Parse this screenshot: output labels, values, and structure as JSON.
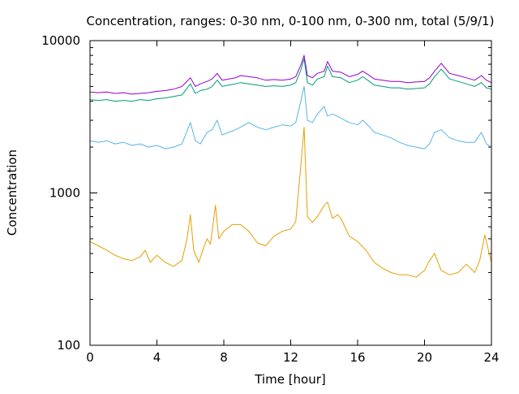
{
  "chart_data": {
    "type": "line",
    "title": "Concentration, ranges: 0-30 nm, 0-100 nm, 0-300 nm, total (5/9/1)",
    "xlabel": "Time [hour]",
    "ylabel": "Concentration",
    "xlim": [
      0,
      24
    ],
    "ylim": [
      100,
      10000
    ],
    "yscale": "log",
    "xticks": [
      0,
      4,
      8,
      12,
      16,
      20,
      24
    ],
    "xtick_labels": [
      "0",
      "4",
      "8",
      "12",
      "16",
      "20",
      "24"
    ],
    "yticks": [
      100,
      1000,
      10000
    ],
    "ytick_labels": [
      "100",
      "1000",
      "10000"
    ],
    "grid": false,
    "legend": "none",
    "series": [
      {
        "color": "#e69f00",
        "x": [
          0,
          0.5,
          1,
          1.5,
          2,
          2.5,
          3,
          3.3,
          3.6,
          4,
          4.5,
          5,
          5.5,
          5.8,
          6,
          6.2,
          6.5,
          6.8,
          7,
          7.2,
          7.5,
          7.7,
          8,
          8.5,
          9,
          9.5,
          10,
          10.5,
          11,
          11.5,
          12,
          12.3,
          12.6,
          12.8,
          13,
          13.3,
          13.6,
          14,
          14.2,
          14.5,
          14.8,
          15,
          15.5,
          16,
          16.5,
          17,
          17.5,
          18,
          18.5,
          19,
          19.5,
          20,
          20.3,
          20.6,
          21,
          21.5,
          22,
          22.5,
          23,
          23.3,
          23.6,
          24
        ],
        "values": [
          480,
          450,
          420,
          390,
          370,
          360,
          380,
          420,
          350,
          390,
          350,
          330,
          360,
          500,
          720,
          420,
          350,
          440,
          500,
          460,
          830,
          500,
          560,
          620,
          620,
          560,
          470,
          450,
          520,
          560,
          580,
          650,
          1500,
          2700,
          700,
          640,
          700,
          830,
          870,
          680,
          720,
          680,
          520,
          480,
          420,
          350,
          320,
          300,
          290,
          290,
          280,
          310,
          360,
          400,
          310,
          290,
          300,
          340,
          300,
          360,
          530,
          350
        ]
      },
      {
        "color": "#56b4e9",
        "x": [
          0,
          0.5,
          1,
          1.5,
          2,
          2.5,
          3,
          3.5,
          4,
          4.5,
          5,
          5.5,
          6,
          6.3,
          6.6,
          7,
          7.3,
          7.6,
          7.9,
          8.3,
          8.7,
          9,
          9.5,
          10,
          10.5,
          11,
          11.5,
          12,
          12.3,
          12.6,
          12.8,
          13,
          13.3,
          13.6,
          14,
          14.2,
          14.5,
          15,
          15.5,
          16,
          16.3,
          16.6,
          17,
          17.5,
          18,
          18.5,
          19,
          19.5,
          20,
          20.3,
          20.6,
          21,
          21.5,
          22,
          22.5,
          23,
          23.4,
          23.7,
          24
        ],
        "values": [
          2200,
          2150,
          2200,
          2100,
          2150,
          2050,
          2100,
          2000,
          2050,
          1950,
          2000,
          2100,
          2900,
          2200,
          2100,
          2500,
          2600,
          3000,
          2400,
          2500,
          2600,
          2700,
          2900,
          2700,
          2600,
          2700,
          2800,
          2750,
          2900,
          4000,
          5000,
          3000,
          2900,
          3300,
          3700,
          3200,
          3300,
          3100,
          2900,
          2800,
          3000,
          2800,
          2500,
          2400,
          2300,
          2150,
          2050,
          2000,
          1950,
          2100,
          2500,
          2600,
          2300,
          2200,
          2150,
          2150,
          2500,
          2100,
          2000
        ]
      },
      {
        "color": "#009e73",
        "x": [
          0,
          0.5,
          1,
          1.5,
          2,
          2.5,
          3,
          3.5,
          4,
          4.5,
          5,
          5.5,
          6,
          6.3,
          6.6,
          7,
          7.3,
          7.6,
          7.9,
          8.3,
          8.7,
          9,
          9.5,
          10,
          10.5,
          11,
          11.5,
          12,
          12.3,
          12.6,
          12.8,
          13,
          13.3,
          13.6,
          14,
          14.2,
          14.5,
          15,
          15.5,
          16,
          16.3,
          16.6,
          17,
          17.5,
          18,
          18.5,
          19,
          19.5,
          20,
          20.3,
          20.6,
          21,
          21.5,
          22,
          22.5,
          23,
          23.4,
          23.7,
          24
        ],
        "values": [
          4100,
          4050,
          4100,
          4000,
          4050,
          4000,
          4100,
          4050,
          4150,
          4200,
          4300,
          4400,
          5200,
          4500,
          4700,
          4800,
          5000,
          5500,
          5000,
          5100,
          5200,
          5300,
          5200,
          5100,
          5000,
          5050,
          5000,
          5100,
          5300,
          6400,
          7600,
          5300,
          5100,
          5600,
          5800,
          6800,
          5800,
          5700,
          5300,
          5500,
          5800,
          5500,
          5100,
          5000,
          4900,
          4900,
          4800,
          4850,
          4900,
          5200,
          5800,
          6500,
          5600,
          5400,
          5200,
          5000,
          5300,
          4900,
          4800
        ]
      },
      {
        "color": "#9400d3",
        "x": [
          0,
          0.5,
          1,
          1.5,
          2,
          2.5,
          3,
          3.5,
          4,
          4.5,
          5,
          5.5,
          6,
          6.3,
          6.6,
          7,
          7.3,
          7.6,
          7.9,
          8.3,
          8.7,
          9,
          9.5,
          10,
          10.5,
          11,
          11.5,
          12,
          12.3,
          12.6,
          12.8,
          13,
          13.3,
          13.6,
          14,
          14.2,
          14.5,
          15,
          15.5,
          16,
          16.3,
          16.6,
          17,
          17.5,
          18,
          18.5,
          19,
          19.5,
          20,
          20.3,
          20.6,
          21,
          21.5,
          22,
          22.5,
          23,
          23.4,
          23.7,
          24
        ],
        "values": [
          4600,
          4550,
          4600,
          4500,
          4550,
          4450,
          4500,
          4550,
          4650,
          4700,
          4800,
          5000,
          5700,
          5000,
          5200,
          5400,
          5600,
          6100,
          5500,
          5600,
          5700,
          5900,
          5800,
          5700,
          5500,
          5550,
          5500,
          5600,
          5800,
          6900,
          8000,
          5900,
          5700,
          6100,
          6300,
          7300,
          6300,
          6200,
          5800,
          6000,
          6300,
          6000,
          5600,
          5500,
          5400,
          5400,
          5300,
          5350,
          5400,
          5700,
          6300,
          7100,
          6100,
          5900,
          5700,
          5500,
          5900,
          5500,
          5300
        ]
      }
    ]
  }
}
